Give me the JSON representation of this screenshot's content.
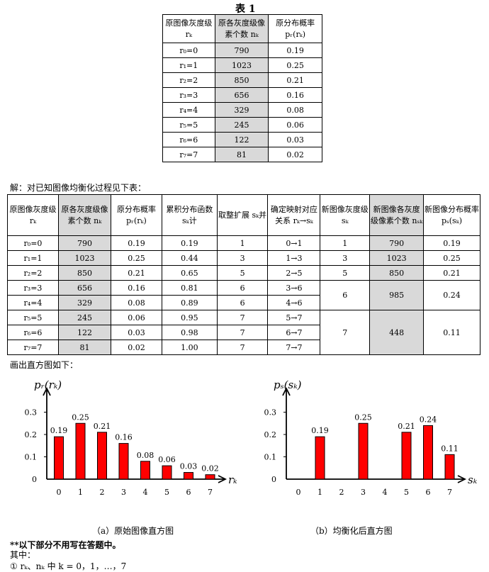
{
  "table1": {
    "title": "表 1",
    "headers": [
      "原图像灰度级 rₖ",
      "原各灰度级像素个数 nₖ",
      "原分布概率 pᵣ(rₖ)"
    ],
    "rows": [
      [
        "r₀=0",
        "790",
        "0.19"
      ],
      [
        "r₁=1",
        "1023",
        "0.25"
      ],
      [
        "r₂=2",
        "850",
        "0.21"
      ],
      [
        "r₃=3",
        "656",
        "0.16"
      ],
      [
        "r₄=4",
        "329",
        "0.08"
      ],
      [
        "r₅=5",
        "245",
        "0.06"
      ],
      [
        "r₆=6",
        "122",
        "0.03"
      ],
      [
        "r₇=7",
        "81",
        "0.02"
      ]
    ]
  },
  "solution_line": "解：对已知图像均衡化过程见下表：",
  "table2": {
    "headers": [
      "原图像灰度级 rₖ",
      "原各灰度级像素个数 nₖ",
      "原分布概率 pᵣ(rₖ)",
      "累积分布函数 sₖ计",
      "取整扩展 sₖ并",
      "确定映射对应关系 rₖ→sₖ",
      "新图像灰度级 sₖ",
      "新图像各灰度级像素个数 nₛₖ",
      "新图像分布概率 pₛ(sₖ)"
    ],
    "rows": [
      [
        "r₀=0",
        "790",
        "0.19",
        "0.19",
        "1",
        "0→1"
      ],
      [
        "r₁=1",
        "1023",
        "0.25",
        "0.44",
        "3",
        "1→3"
      ],
      [
        "r₂=2",
        "850",
        "0.21",
        "0.65",
        "5",
        "2→5"
      ],
      [
        "r₃=3",
        "656",
        "0.16",
        "0.81",
        "6",
        "3→6"
      ],
      [
        "r₄=4",
        "329",
        "0.08",
        "0.89",
        "6",
        "4→6"
      ],
      [
        "r₅=5",
        "245",
        "0.06",
        "0.95",
        "7",
        "5→7"
      ],
      [
        "r₆=6",
        "122",
        "0.03",
        "0.98",
        "7",
        "6→7"
      ],
      [
        "r₇=7",
        "81",
        "0.02",
        "1.00",
        "7",
        "7→7"
      ]
    ],
    "new_rows": [
      [
        "1",
        "790",
        "0.19"
      ],
      [
        "3",
        "1023",
        "0.25"
      ],
      [
        "5",
        "850",
        "0.21"
      ],
      [
        "6",
        "985",
        "0.24"
      ],
      [
        "7",
        "448",
        "0.11"
      ]
    ]
  },
  "draw_line": "画出直方图如下：",
  "chart_data": [
    {
      "type": "bar",
      "ylabel": "pᵣ(rₖ)",
      "xlabel": "rₖ",
      "caption": "（a）原始图像直方图",
      "x": [
        0,
        1,
        2,
        3,
        4,
        5,
        6,
        7
      ],
      "values": [
        0.19,
        0.25,
        0.21,
        0.16,
        0.08,
        0.06,
        0.03,
        0.02
      ],
      "labels": [
        "0.19",
        "0.25",
        "0.21",
        "0.16",
        "0.08",
        "0.06",
        "0.03",
        "0.02"
      ],
      "yticks": [
        "0",
        "0.1",
        "0.2",
        "0.3"
      ],
      "ylim": [
        0,
        0.3
      ],
      "color": "#ff0000"
    },
    {
      "type": "bar",
      "ylabel": "pₛ(sₖ)",
      "xlabel": "sₖ",
      "caption": "（b）均衡化后直方图",
      "x": [
        0,
        1,
        2,
        3,
        4,
        5,
        6,
        7
      ],
      "values": [
        0,
        0.19,
        0,
        0.25,
        0,
        0.21,
        0.24,
        0.11
      ],
      "labels": [
        "",
        "0.19",
        "",
        "0.25",
        "",
        "0.21",
        "0.24",
        "0.11"
      ],
      "yticks": [
        "0",
        "0.1",
        "0.2",
        "0.3"
      ],
      "ylim": [
        0,
        0.3
      ],
      "color": "#ff0000"
    }
  ],
  "note_bold": "**以下部分不用写在答题中。",
  "note_line1": "其中：",
  "note_line2": "① rₖ、nₖ 中 k = 0，1，…，7"
}
